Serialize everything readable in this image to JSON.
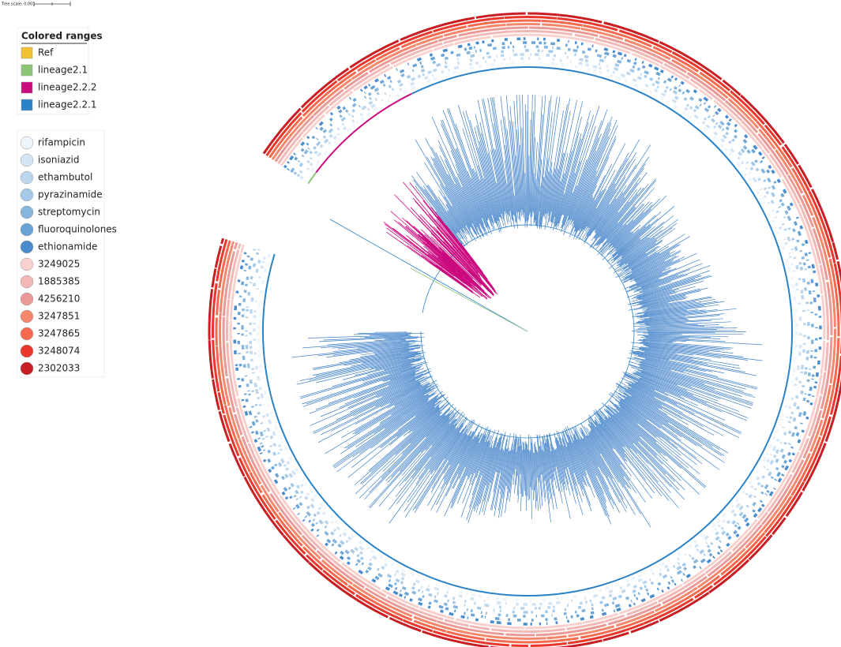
{
  "tree_scale": "Tree scale: 0.001",
  "ranges_legend": {
    "title": "Colored ranges",
    "items": [
      {
        "label": "Ref",
        "color": "#f2c12e"
      },
      {
        "label": "lineage2.1",
        "color": "#8cc576"
      },
      {
        "label": "lineage2.2.2",
        "color": "#cc0a7f"
      },
      {
        "label": "lineage2.2.1",
        "color": "#2a83c8"
      }
    ]
  },
  "tracks_legend": {
    "items": [
      {
        "label": "rifampicin",
        "color": "#eef4fb"
      },
      {
        "label": "isoniazid",
        "color": "#d3e4f4"
      },
      {
        "label": "ethambutol",
        "color": "#bcd6ee"
      },
      {
        "label": "pyrazinamide",
        "color": "#a5c9e8"
      },
      {
        "label": "streptomycin",
        "color": "#86b6dd"
      },
      {
        "label": "fluoroquinolones",
        "color": "#6aa3d5"
      },
      {
        "label": "ethionamide",
        "color": "#4a8ccb"
      },
      {
        "label": "3249025",
        "color": "#f9d0cc"
      },
      {
        "label": "1885385",
        "color": "#f1b8b6"
      },
      {
        "label": "4256210",
        "color": "#e99a97"
      },
      {
        "label": "3247851",
        "color": "#f7876c"
      },
      {
        "label": "3247865",
        "color": "#f56a4f"
      },
      {
        "label": "3248074",
        "color": "#e9372b"
      },
      {
        "label": "2302033",
        "color": "#c81d22"
      }
    ]
  }
}
